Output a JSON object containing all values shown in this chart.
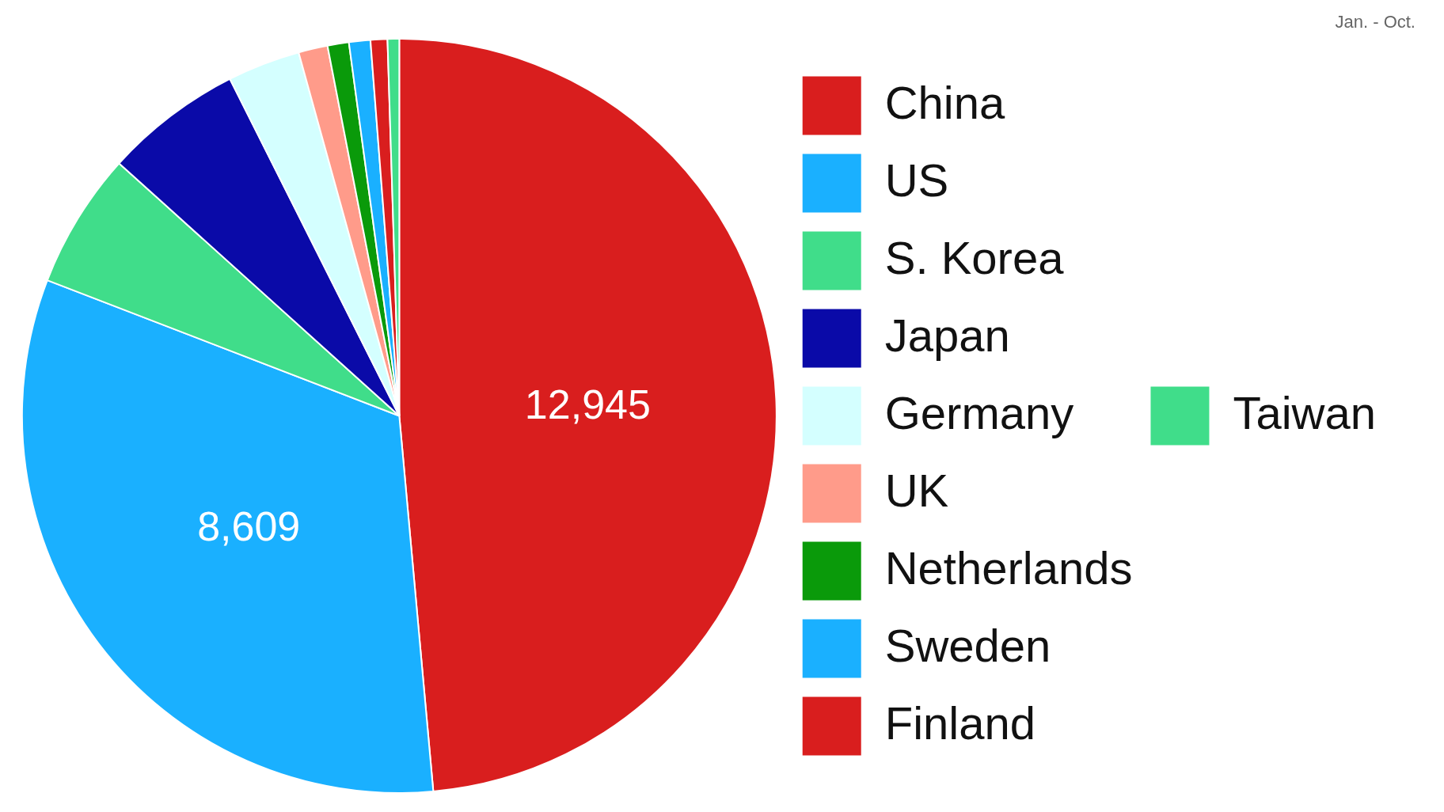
{
  "chart_data": {
    "type": "pie",
    "categories": [
      "China",
      "US",
      "S. Korea",
      "Japan",
      "Germany",
      "UK",
      "Netherlands",
      "Sweden",
      "Finland",
      "Taiwan"
    ],
    "values": [
      12945,
      8609,
      1552,
      1576,
      829,
      333,
      244,
      244,
      192,
      133
    ],
    "colors": [
      "#d91e1e",
      "#1ab0ff",
      "#40dd8a",
      "#0a0aa8",
      "#d4ffff",
      "#ff9b8a",
      "#0a9a0a",
      "#1ab0ff",
      "#d91e1e",
      "#40dd8a"
    ],
    "value_labels": [
      "12,945",
      "8,609",
      null,
      null,
      null,
      null,
      null,
      null,
      null,
      null
    ],
    "legend": "right",
    "annotations": [
      "Jan. - Oct."
    ]
  }
}
